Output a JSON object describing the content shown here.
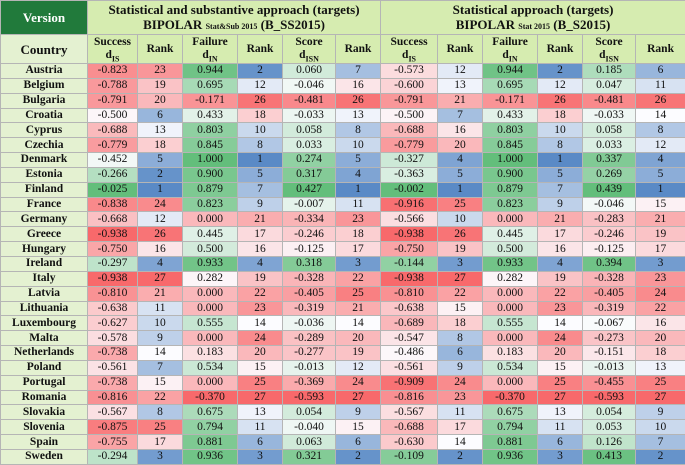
{
  "header": {
    "version_label": "Version",
    "left_title": "Statistical and substantive approach (targets)",
    "left_bipolar": "BIPOLAR",
    "left_sub": "Stat&Sub 2015",
    "left_code": "(B_SS2015)",
    "right_title": "Statistical approach (targets)",
    "right_bipolar": "BIPOLAR",
    "right_sub": "Stat 2015",
    "right_code": "(B_S2015)"
  },
  "columns": {
    "country": "Country",
    "success": "Success",
    "success_sub": "IS",
    "rank": "Rank",
    "failure": "Failure",
    "failure_sub": "IN",
    "score": "Score",
    "score_sub": "ISN",
    "d": "d"
  },
  "colors": {
    "version_bg": "#217a3b",
    "header_bg": "#d6ecb0",
    "country_bg": "#e4f1d1",
    "high_green": "#63be7b",
    "low_red": "#f8696b",
    "rank_best_blue": "#5a8ac6",
    "mid_white": "#fcfcff"
  },
  "rows": [
    {
      "country": "Austria",
      "v": [
        "-0.823",
        "23",
        "0.944",
        "2",
        "0.060",
        "7",
        "-0.573",
        "12",
        "0.944",
        "2",
        "0.185",
        "6"
      ]
    },
    {
      "country": "Belgium",
      "v": [
        "-0.788",
        "19",
        "0.695",
        "12",
        "-0.046",
        "16",
        "-0.600",
        "13",
        "0.695",
        "12",
        "0.047",
        "11"
      ]
    },
    {
      "country": "Bulgaria",
      "v": [
        "-0.791",
        "20",
        "-0.171",
        "26",
        "-0.481",
        "26",
        "-0.791",
        "21",
        "-0.171",
        "26",
        "-0.481",
        "26"
      ]
    },
    {
      "country": "Croatia",
      "v": [
        "-0.500",
        "6",
        "0.433",
        "18",
        "-0.033",
        "13",
        "-0.500",
        "7",
        "0.433",
        "18",
        "-0.033",
        "14"
      ]
    },
    {
      "country": "Cyprus",
      "v": [
        "-0.688",
        "13",
        "0.803",
        "10",
        "0.058",
        "8",
        "-0.688",
        "16",
        "0.803",
        "10",
        "0.058",
        "8"
      ]
    },
    {
      "country": "Czechia",
      "v": [
        "-0.779",
        "18",
        "0.845",
        "8",
        "0.033",
        "10",
        "-0.779",
        "20",
        "0.845",
        "8",
        "0.033",
        "12"
      ]
    },
    {
      "country": "Denmark",
      "v": [
        "-0.452",
        "5",
        "1.000",
        "1",
        "0.274",
        "5",
        "-0.327",
        "4",
        "1.000",
        "1",
        "0.337",
        "4"
      ]
    },
    {
      "country": "Estonia",
      "v": [
        "-0.266",
        "2",
        "0.900",
        "5",
        "0.317",
        "4",
        "-0.363",
        "5",
        "0.900",
        "5",
        "0.269",
        "5"
      ]
    },
    {
      "country": "Finland",
      "v": [
        "-0.025",
        "1",
        "0.879",
        "7",
        "0.427",
        "1",
        "-0.002",
        "1",
        "0.879",
        "7",
        "0.439",
        "1"
      ]
    },
    {
      "country": "France",
      "v": [
        "-0.838",
        "24",
        "0.823",
        "9",
        "-0.007",
        "11",
        "-0.916",
        "25",
        "0.823",
        "9",
        "-0.046",
        "15"
      ]
    },
    {
      "country": "Germany",
      "v": [
        "-0.668",
        "12",
        "0.000",
        "21",
        "-0.334",
        "23",
        "-0.566",
        "10",
        "0.000",
        "21",
        "-0.283",
        "21"
      ]
    },
    {
      "country": "Greece",
      "v": [
        "-0.938",
        "26",
        "0.445",
        "17",
        "-0.246",
        "18",
        "-0.938",
        "26",
        "0.445",
        "17",
        "-0.246",
        "19"
      ]
    },
    {
      "country": "Hungary",
      "v": [
        "-0.750",
        "16",
        "0.500",
        "16",
        "-0.125",
        "17",
        "-0.750",
        "19",
        "0.500",
        "16",
        "-0.125",
        "17"
      ]
    },
    {
      "country": "Ireland",
      "v": [
        "-0.297",
        "4",
        "0.933",
        "4",
        "0.318",
        "3",
        "-0.144",
        "3",
        "0.933",
        "4",
        "0.394",
        "3"
      ]
    },
    {
      "country": "Italy",
      "v": [
        "-0.938",
        "27",
        "0.282",
        "19",
        "-0.328",
        "22",
        "-0.938",
        "27",
        "0.282",
        "19",
        "-0.328",
        "23"
      ]
    },
    {
      "country": "Latvia",
      "v": [
        "-0.810",
        "21",
        "0.000",
        "22",
        "-0.405",
        "25",
        "-0.810",
        "22",
        "0.000",
        "22",
        "-0.405",
        "24"
      ]
    },
    {
      "country": "Lithuania",
      "v": [
        "-0.638",
        "11",
        "0.000",
        "23",
        "-0.319",
        "21",
        "-0.638",
        "15",
        "0.000",
        "23",
        "-0.319",
        "22"
      ]
    },
    {
      "country": "Luxembourg",
      "v": [
        "-0.627",
        "10",
        "0.555",
        "14",
        "-0.036",
        "14",
        "-0.689",
        "18",
        "0.555",
        "14",
        "-0.067",
        "16"
      ]
    },
    {
      "country": "Malta",
      "v": [
        "-0.578",
        "9",
        "0.000",
        "24",
        "-0.289",
        "20",
        "-0.547",
        "8",
        "0.000",
        "24",
        "-0.273",
        "20"
      ]
    },
    {
      "country": "Netherlands",
      "v": [
        "-0.738",
        "14",
        "0.183",
        "20",
        "-0.277",
        "19",
        "-0.486",
        "6",
        "0.183",
        "20",
        "-0.151",
        "18"
      ]
    },
    {
      "country": "Poland",
      "v": [
        "-0.561",
        "7",
        "0.534",
        "15",
        "-0.013",
        "12",
        "-0.561",
        "9",
        "0.534",
        "15",
        "-0.013",
        "13"
      ]
    },
    {
      "country": "Portugal",
      "v": [
        "-0.738",
        "15",
        "0.000",
        "25",
        "-0.369",
        "24",
        "-0.909",
        "24",
        "0.000",
        "25",
        "-0.455",
        "25"
      ]
    },
    {
      "country": "Romania",
      "v": [
        "-0.816",
        "22",
        "-0.370",
        "27",
        "-0.593",
        "27",
        "-0.816",
        "23",
        "-0.370",
        "27",
        "-0.593",
        "27"
      ]
    },
    {
      "country": "Slovakia",
      "v": [
        "-0.567",
        "8",
        "0.675",
        "13",
        "0.054",
        "9",
        "-0.567",
        "11",
        "0.675",
        "13",
        "0.054",
        "9"
      ]
    },
    {
      "country": "Slovenia",
      "v": [
        "-0.875",
        "25",
        "0.794",
        "11",
        "-0.040",
        "15",
        "-0.688",
        "17",
        "0.794",
        "11",
        "0.053",
        "10"
      ]
    },
    {
      "country": "Spain",
      "v": [
        "-0.755",
        "17",
        "0.881",
        "6",
        "0.063",
        "6",
        "-0.630",
        "14",
        "0.881",
        "6",
        "0.126",
        "7"
      ]
    },
    {
      "country": "Sweden",
      "v": [
        "-0.294",
        "3",
        "0.936",
        "3",
        "0.321",
        "2",
        "-0.109",
        "2",
        "0.936",
        "3",
        "0.413",
        "2"
      ]
    }
  ]
}
